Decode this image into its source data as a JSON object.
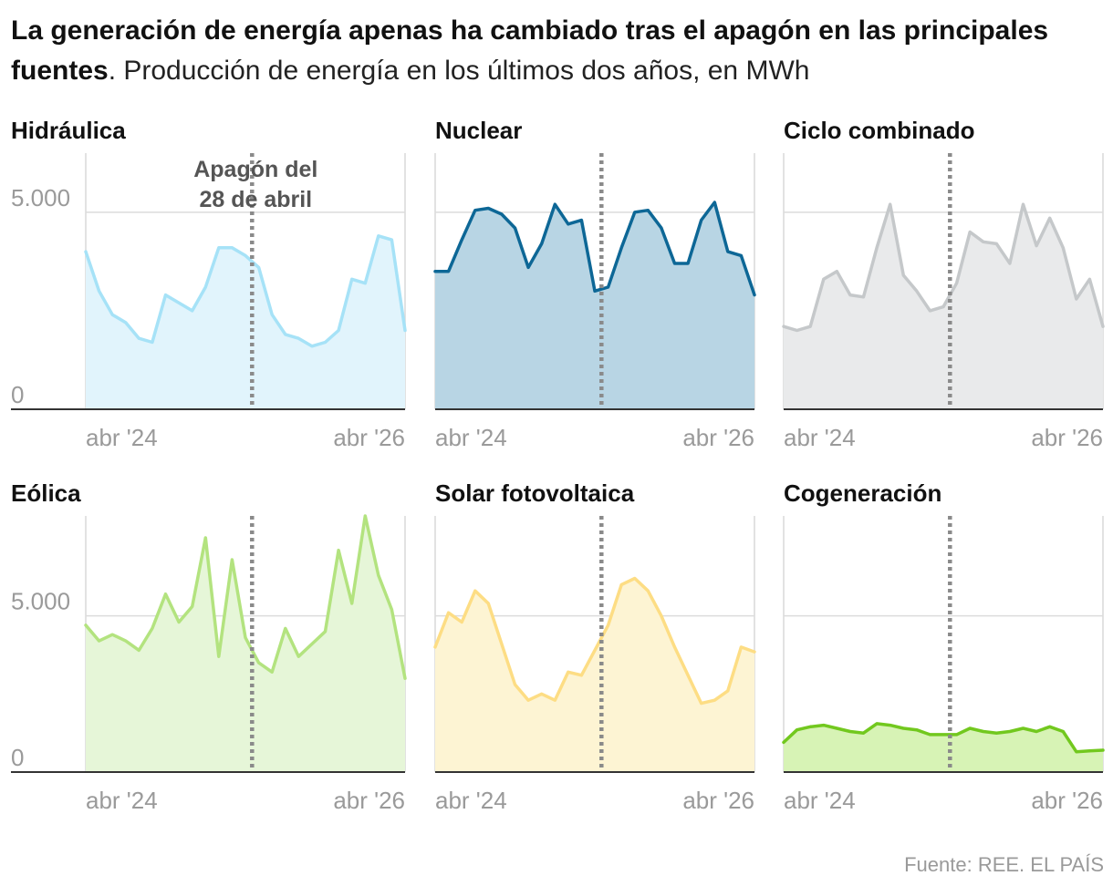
{
  "headline": {
    "bold": "La generación de energía apenas ha cambiado tras el apagón en las principales fuentes",
    "rest": ". Producción de energía en los últimos dos años, en MWh"
  },
  "source": "Fuente: REE. EL PAÍS",
  "chart_data": [
    {
      "type": "area",
      "title": "Hidráulica",
      "color": "#a6e2f7",
      "fill": "#e1f4fc",
      "ylim": [
        0,
        6500
      ],
      "yticks": [
        0,
        5000
      ],
      "ytick_labels": [
        "0",
        "5.000"
      ],
      "xtick_labels": [
        "abr '24",
        "abr '26"
      ],
      "annotation": {
        "label_line1": "Apagón del",
        "label_line2": "28 de abril",
        "x_index": 12.5
      },
      "values": [
        4000,
        3000,
        2400,
        2200,
        1800,
        1700,
        2900,
        2700,
        2500,
        3100,
        4100,
        4100,
        3900,
        3600,
        2400,
        1900,
        1800,
        1600,
        1700,
        2000,
        3300,
        3200,
        4400,
        4300,
        2000
      ]
    },
    {
      "type": "area",
      "title": "Nuclear",
      "color": "#0d6796",
      "fill": "#b8d5e4",
      "ylim": [
        0,
        6500
      ],
      "yticks": [
        0,
        5000
      ],
      "ytick_labels": [
        "",
        ""
      ],
      "xtick_labels": [
        "abr '24",
        "abr '26"
      ],
      "annotation": {
        "label_line1": "",
        "label_line2": "",
        "x_index": 12.5
      },
      "values": [
        3500,
        3500,
        4300,
        5050,
        5100,
        4950,
        4600,
        3600,
        4200,
        5200,
        4700,
        4800,
        3000,
        3100,
        4100,
        5000,
        5050,
        4600,
        3700,
        3700,
        4800,
        5250,
        4000,
        3900,
        2900
      ]
    },
    {
      "type": "area",
      "title": "Ciclo combinado",
      "color": "#c5c8ca",
      "fill": "#e9eaeb",
      "ylim": [
        0,
        6500
      ],
      "yticks": [
        0,
        5000
      ],
      "ytick_labels": [
        "",
        ""
      ],
      "xtick_labels": [
        "abr '24",
        "abr '26"
      ],
      "annotation": {
        "label_line1": "",
        "label_line2": "",
        "x_index": 12.5
      },
      "values": [
        2100,
        2000,
        2100,
        3300,
        3500,
        2900,
        2850,
        4100,
        5200,
        3400,
        3000,
        2500,
        2600,
        3200,
        4500,
        4250,
        4200,
        3700,
        5200,
        4150,
        4850,
        4100,
        2800,
        3300,
        2100
      ]
    },
    {
      "type": "area",
      "title": "Eólica",
      "color": "#b3e37f",
      "fill": "#e6f6d8",
      "ylim": [
        0,
        8200
      ],
      "yticks": [
        0,
        5000
      ],
      "ytick_labels": [
        "0",
        "5.000"
      ],
      "xtick_labels": [
        "abr '24",
        "abr '26"
      ],
      "annotation": {
        "label_line1": "",
        "label_line2": "",
        "x_index": 12.5
      },
      "values": [
        4700,
        4200,
        4400,
        4200,
        3900,
        4600,
        5700,
        4800,
        5300,
        7500,
        3700,
        6800,
        4300,
        3500,
        3200,
        4600,
        3700,
        4100,
        4500,
        7100,
        5400,
        8200,
        6300,
        5200,
        3000
      ]
    },
    {
      "type": "area",
      "title": "Solar fotovoltaica",
      "color": "#fddd84",
      "fill": "#fdf4d3",
      "ylim": [
        0,
        8200
      ],
      "yticks": [
        0,
        5000
      ],
      "ytick_labels": [
        "",
        ""
      ],
      "xtick_labels": [
        "abr '24",
        "abr '26"
      ],
      "annotation": {
        "label_line1": "",
        "label_line2": "",
        "x_index": 12.5
      },
      "values": [
        4000,
        5100,
        4800,
        5800,
        5400,
        4100,
        2800,
        2300,
        2500,
        2300,
        3200,
        3100,
        3900,
        4700,
        6000,
        6200,
        5800,
        5000,
        4000,
        3100,
        2200,
        2300,
        2600,
        4000,
        3850
      ]
    },
    {
      "type": "area",
      "title": "Cogeneración",
      "color": "#72c81e",
      "fill": "#d7f3b5",
      "ylim": [
        0,
        8200
      ],
      "yticks": [
        0,
        5000
      ],
      "ytick_labels": [
        "",
        ""
      ],
      "xtick_labels": [
        "abr '24",
        "abr '26"
      ],
      "annotation": {
        "label_line1": "",
        "label_line2": "",
        "x_index": 12.5
      },
      "values": [
        950,
        1350,
        1450,
        1500,
        1400,
        1300,
        1250,
        1550,
        1500,
        1400,
        1350,
        1200,
        1200,
        1200,
        1400,
        1300,
        1250,
        1300,
        1400,
        1300,
        1450,
        1300,
        650,
        680,
        700
      ]
    }
  ]
}
